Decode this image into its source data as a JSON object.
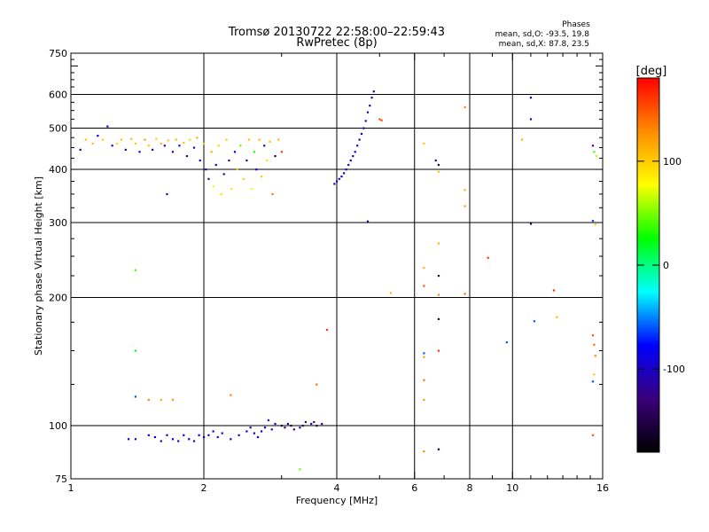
{
  "chart_data": {
    "type": "scatter",
    "title": "Tromsø 20130722 22:58:00–22:59:43",
    "subtitle": "RwPretec (8p)",
    "stats": {
      "heading": "Phases",
      "line1": "mean, sd,O: -93.5, 19.8",
      "line2": "mean, sd,X: 87.8, 23.5"
    },
    "xlabel": "Frequency [MHz]",
    "ylabel": "Stationary phase Virtual Height [km]",
    "x_scale": "log",
    "y_scale": "log",
    "xlim": [
      1,
      16
    ],
    "ylim": [
      75,
      750
    ],
    "x_ticks": [
      1,
      2,
      4,
      6,
      8,
      10,
      16
    ],
    "x_tick_labels": [
      "1",
      "2",
      "4",
      "6",
      "8",
      "10",
      "16"
    ],
    "y_ticks": [
      75,
      100,
      200,
      300,
      400,
      500,
      600,
      750
    ],
    "y_tick_labels": [
      "75",
      "100",
      "200",
      "300",
      "400",
      "500",
      "600",
      "750"
    ],
    "grid_x": [
      2,
      4,
      6,
      8,
      10
    ],
    "grid_y": [
      100,
      200,
      300,
      400,
      500,
      600
    ],
    "colorbar": {
      "label": "[deg]",
      "range": [
        -180,
        180
      ],
      "ticks": [
        100,
        0,
        -100
      ],
      "tick_labels": [
        "100",
        "0",
        "-100"
      ],
      "colors": [
        "#ff0000",
        "#ff8c00",
        "#ffff00",
        "#00ff00",
        "#00ffff",
        "#0000ff",
        "#3a007a",
        "#000000"
      ]
    },
    "points": [
      {
        "x": 1.05,
        "y": 445,
        "p": -110
      },
      {
        "x": 1.08,
        "y": 470,
        "p": 105
      },
      {
        "x": 1.12,
        "y": 460,
        "p": 110
      },
      {
        "x": 1.15,
        "y": 480,
        "p": -90
      },
      {
        "x": 1.18,
        "y": 470,
        "p": 100
      },
      {
        "x": 1.21,
        "y": 505,
        "p": -85
      },
      {
        "x": 1.24,
        "y": 455,
        "p": -100
      },
      {
        "x": 1.27,
        "y": 460,
        "p": 95
      },
      {
        "x": 1.3,
        "y": 470,
        "p": 105
      },
      {
        "x": 1.33,
        "y": 445,
        "p": -120
      },
      {
        "x": 1.37,
        "y": 472,
        "p": 110
      },
      {
        "x": 1.4,
        "y": 460,
        "p": 100
      },
      {
        "x": 1.43,
        "y": 440,
        "p": -95
      },
      {
        "x": 1.47,
        "y": 470,
        "p": 120
      },
      {
        "x": 1.5,
        "y": 455,
        "p": 105
      },
      {
        "x": 1.53,
        "y": 445,
        "p": -110
      },
      {
        "x": 1.56,
        "y": 472,
        "p": 95
      },
      {
        "x": 1.6,
        "y": 460,
        "p": 110
      },
      {
        "x": 1.63,
        "y": 455,
        "p": -105
      },
      {
        "x": 1.66,
        "y": 468,
        "p": 100
      },
      {
        "x": 1.7,
        "y": 440,
        "p": -115
      },
      {
        "x": 1.73,
        "y": 470,
        "p": 110
      },
      {
        "x": 1.76,
        "y": 455,
        "p": -90
      },
      {
        "x": 1.8,
        "y": 462,
        "p": 105
      },
      {
        "x": 1.83,
        "y": 430,
        "p": -130
      },
      {
        "x": 1.86,
        "y": 470,
        "p": 95
      },
      {
        "x": 1.9,
        "y": 450,
        "p": -100
      },
      {
        "x": 1.93,
        "y": 475,
        "p": 110
      },
      {
        "x": 1.96,
        "y": 420,
        "p": -110
      },
      {
        "x": 2.0,
        "y": 460,
        "p": 100
      },
      {
        "x": 2.02,
        "y": 400,
        "p": -95
      },
      {
        "x": 2.05,
        "y": 380,
        "p": -120
      },
      {
        "x": 2.08,
        "y": 440,
        "p": 110
      },
      {
        "x": 2.1,
        "y": 365,
        "p": 80
      },
      {
        "x": 2.13,
        "y": 410,
        "p": -105
      },
      {
        "x": 2.16,
        "y": 455,
        "p": 95
      },
      {
        "x": 2.19,
        "y": 350,
        "p": 90
      },
      {
        "x": 2.22,
        "y": 390,
        "p": -100
      },
      {
        "x": 2.25,
        "y": 470,
        "p": 100
      },
      {
        "x": 2.28,
        "y": 420,
        "p": -130
      },
      {
        "x": 2.31,
        "y": 360,
        "p": 85
      },
      {
        "x": 2.35,
        "y": 440,
        "p": -90
      },
      {
        "x": 2.38,
        "y": 400,
        "p": 100
      },
      {
        "x": 2.42,
        "y": 455,
        "p": 45
      },
      {
        "x": 2.46,
        "y": 380,
        "p": 95
      },
      {
        "x": 2.5,
        "y": 420,
        "p": -110
      },
      {
        "x": 2.53,
        "y": 470,
        "p": 105
      },
      {
        "x": 2.57,
        "y": 360,
        "p": 75
      },
      {
        "x": 2.6,
        "y": 440,
        "p": 30
      },
      {
        "x": 2.63,
        "y": 400,
        "p": -95
      },
      {
        "x": 2.67,
        "y": 470,
        "p": 110
      },
      {
        "x": 2.7,
        "y": 385,
        "p": 100
      },
      {
        "x": 2.74,
        "y": 455,
        "p": -120
      },
      {
        "x": 2.78,
        "y": 420,
        "p": 90
      },
      {
        "x": 2.82,
        "y": 465,
        "p": 105
      },
      {
        "x": 2.86,
        "y": 350,
        "p": 135
      },
      {
        "x": 2.9,
        "y": 430,
        "p": -150
      },
      {
        "x": 2.95,
        "y": 470,
        "p": 110
      },
      {
        "x": 3.0,
        "y": 440,
        "p": 160
      },
      {
        "x": 1.4,
        "y": 232,
        "p": 40
      },
      {
        "x": 1.4,
        "y": 150,
        "p": 30
      },
      {
        "x": 1.4,
        "y": 117,
        "p": -60
      },
      {
        "x": 1.5,
        "y": 115,
        "p": 130
      },
      {
        "x": 1.6,
        "y": 115,
        "p": 110
      },
      {
        "x": 1.7,
        "y": 115,
        "p": 125
      },
      {
        "x": 2.3,
        "y": 118,
        "p": 130
      },
      {
        "x": 3.6,
        "y": 125,
        "p": 140
      },
      {
        "x": 3.8,
        "y": 168,
        "p": 160
      },
      {
        "x": 1.65,
        "y": 350,
        "p": -110
      },
      {
        "x": 3.3,
        "y": 79,
        "p": 50
      },
      {
        "x": 1.35,
        "y": 93,
        "p": -110
      },
      {
        "x": 1.4,
        "y": 93,
        "p": -120
      },
      {
        "x": 1.5,
        "y": 95,
        "p": -100
      },
      {
        "x": 1.55,
        "y": 94,
        "p": -90
      },
      {
        "x": 1.6,
        "y": 92,
        "p": -115
      },
      {
        "x": 1.65,
        "y": 95,
        "p": -100
      },
      {
        "x": 1.7,
        "y": 93,
        "p": -85
      },
      {
        "x": 1.75,
        "y": 92,
        "p": -110
      },
      {
        "x": 1.8,
        "y": 95,
        "p": -95
      },
      {
        "x": 1.85,
        "y": 93,
        "p": -100
      },
      {
        "x": 1.9,
        "y": 92,
        "p": -120
      },
      {
        "x": 1.95,
        "y": 95,
        "p": -110
      },
      {
        "x": 2.0,
        "y": 94,
        "p": -90
      },
      {
        "x": 2.05,
        "y": 95,
        "p": -100
      },
      {
        "x": 2.1,
        "y": 97,
        "p": -105
      },
      {
        "x": 2.15,
        "y": 94,
        "p": -95
      },
      {
        "x": 2.2,
        "y": 96,
        "p": -115
      },
      {
        "x": 2.3,
        "y": 93,
        "p": -100
      },
      {
        "x": 2.4,
        "y": 95,
        "p": -110
      },
      {
        "x": 2.5,
        "y": 97,
        "p": -90
      },
      {
        "x": 2.55,
        "y": 99,
        "p": -120
      },
      {
        "x": 2.6,
        "y": 96,
        "p": -105
      },
      {
        "x": 2.65,
        "y": 94,
        "p": -80
      },
      {
        "x": 2.7,
        "y": 97,
        "p": -100
      },
      {
        "x": 2.75,
        "y": 99,
        "p": -110
      },
      {
        "x": 2.8,
        "y": 103,
        "p": -70
      },
      {
        "x": 2.85,
        "y": 98,
        "p": -95
      },
      {
        "x": 2.9,
        "y": 101,
        "p": -100
      },
      {
        "x": 3.0,
        "y": 100,
        "p": -160
      },
      {
        "x": 3.05,
        "y": 99,
        "p": -140
      },
      {
        "x": 3.1,
        "y": 101,
        "p": -120
      },
      {
        "x": 3.15,
        "y": 100,
        "p": -150
      },
      {
        "x": 3.2,
        "y": 98,
        "p": -130
      },
      {
        "x": 3.3,
        "y": 99,
        "p": -110
      },
      {
        "x": 3.35,
        "y": 100,
        "p": -150
      },
      {
        "x": 3.4,
        "y": 102,
        "p": -120
      },
      {
        "x": 3.5,
        "y": 101,
        "p": -100
      },
      {
        "x": 3.55,
        "y": 102,
        "p": -130
      },
      {
        "x": 3.6,
        "y": 100,
        "p": -150
      },
      {
        "x": 3.7,
        "y": 101,
        "p": -110
      },
      {
        "x": 3.95,
        "y": 370,
        "p": -110
      },
      {
        "x": 4.0,
        "y": 375,
        "p": -100
      },
      {
        "x": 4.05,
        "y": 380,
        "p": -115
      },
      {
        "x": 4.1,
        "y": 385,
        "p": -95
      },
      {
        "x": 4.15,
        "y": 392,
        "p": -110
      },
      {
        "x": 4.2,
        "y": 400,
        "p": -100
      },
      {
        "x": 4.25,
        "y": 410,
        "p": -120
      },
      {
        "x": 4.3,
        "y": 420,
        "p": -105
      },
      {
        "x": 4.35,
        "y": 430,
        "p": -90
      },
      {
        "x": 4.4,
        "y": 440,
        "p": -110
      },
      {
        "x": 4.45,
        "y": 455,
        "p": -100
      },
      {
        "x": 4.5,
        "y": 470,
        "p": -115
      },
      {
        "x": 4.55,
        "y": 485,
        "p": -95
      },
      {
        "x": 4.6,
        "y": 500,
        "p": -110
      },
      {
        "x": 4.65,
        "y": 520,
        "p": -100
      },
      {
        "x": 4.7,
        "y": 545,
        "p": -120
      },
      {
        "x": 4.75,
        "y": 565,
        "p": -105
      },
      {
        "x": 4.8,
        "y": 590,
        "p": -110
      },
      {
        "x": 4.85,
        "y": 610,
        "p": -100
      },
      {
        "x": 5.0,
        "y": 525,
        "p": 150
      },
      {
        "x": 5.05,
        "y": 522,
        "p": 155
      },
      {
        "x": 4.7,
        "y": 302,
        "p": -115
      },
      {
        "x": 5.3,
        "y": 205,
        "p": 110
      },
      {
        "x": 6.3,
        "y": 460,
        "p": 100
      },
      {
        "x": 6.3,
        "y": 235,
        "p": 110
      },
      {
        "x": 6.3,
        "y": 213,
        "p": 150
      },
      {
        "x": 6.3,
        "y": 148,
        "p": -60
      },
      {
        "x": 6.3,
        "y": 145,
        "p": 120
      },
      {
        "x": 6.3,
        "y": 128,
        "p": 140
      },
      {
        "x": 6.3,
        "y": 115,
        "p": 120
      },
      {
        "x": 6.3,
        "y": 87,
        "p": 130
      },
      {
        "x": 6.7,
        "y": 420,
        "p": -110
      },
      {
        "x": 6.8,
        "y": 410,
        "p": -150
      },
      {
        "x": 6.8,
        "y": 395,
        "p": 100
      },
      {
        "x": 6.8,
        "y": 268,
        "p": 110
      },
      {
        "x": 6.8,
        "y": 225,
        "p": -140
      },
      {
        "x": 6.8,
        "y": 203,
        "p": 130
      },
      {
        "x": 6.8,
        "y": 178,
        "p": -150
      },
      {
        "x": 6.8,
        "y": 150,
        "p": 160
      },
      {
        "x": 6.8,
        "y": 88,
        "p": -150
      },
      {
        "x": 7.8,
        "y": 560,
        "p": 130
      },
      {
        "x": 7.8,
        "y": 358,
        "p": 110
      },
      {
        "x": 7.8,
        "y": 328,
        "p": 120
      },
      {
        "x": 7.8,
        "y": 204,
        "p": 140
      },
      {
        "x": 8.8,
        "y": 248,
        "p": 160
      },
      {
        "x": 9.7,
        "y": 157,
        "p": -60
      },
      {
        "x": 10.5,
        "y": 470,
        "p": 110
      },
      {
        "x": 11.0,
        "y": 590,
        "p": -110
      },
      {
        "x": 11.0,
        "y": 525,
        "p": -105
      },
      {
        "x": 11.0,
        "y": 298,
        "p": -120
      },
      {
        "x": 11.2,
        "y": 176,
        "p": -60
      },
      {
        "x": 12.4,
        "y": 208,
        "p": 160
      },
      {
        "x": 12.6,
        "y": 180,
        "p": 110
      },
      {
        "x": 15.2,
        "y": 455,
        "p": -130
      },
      {
        "x": 15.3,
        "y": 440,
        "p": 40
      },
      {
        "x": 15.5,
        "y": 430,
        "p": 60
      },
      {
        "x": 15.2,
        "y": 303,
        "p": -60
      },
      {
        "x": 15.4,
        "y": 297,
        "p": 100
      },
      {
        "x": 15.2,
        "y": 163,
        "p": 150
      },
      {
        "x": 15.3,
        "y": 155,
        "p": 140
      },
      {
        "x": 15.4,
        "y": 146,
        "p": 130
      },
      {
        "x": 15.3,
        "y": 132,
        "p": 100
      },
      {
        "x": 15.2,
        "y": 127,
        "p": -60
      },
      {
        "x": 15.2,
        "y": 95,
        "p": 150
      }
    ]
  }
}
